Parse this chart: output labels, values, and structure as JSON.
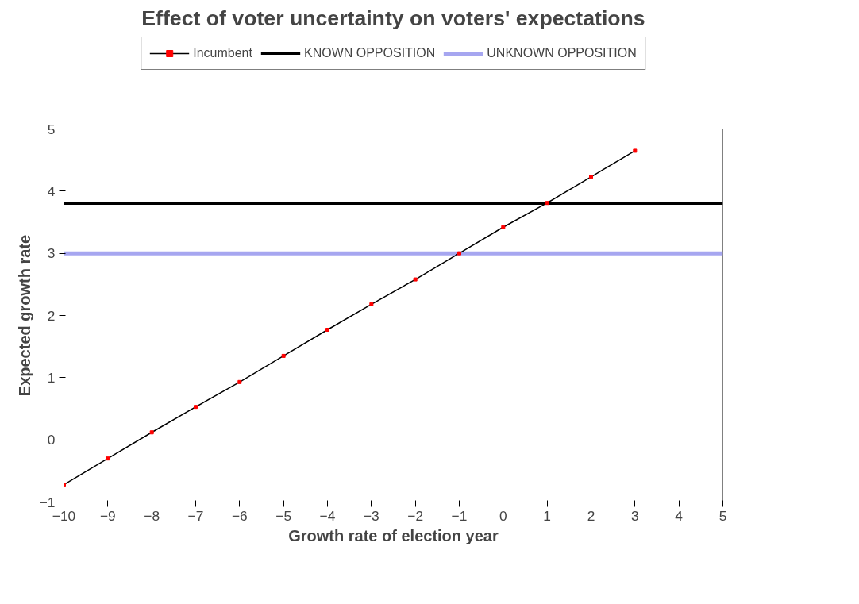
{
  "chart_data": {
    "type": "line",
    "title": "Effect of voter uncertainty on voters' expectations",
    "xlabel": "Growth rate of election year",
    "ylabel": "Expected growth rate",
    "xlim": [
      -10,
      5
    ],
    "ylim": [
      -1,
      5
    ],
    "xticks": [
      -10,
      -9,
      -8,
      -7,
      -6,
      -5,
      -4,
      -3,
      -2,
      -1,
      0,
      1,
      2,
      3,
      4,
      5
    ],
    "yticks": [
      -1,
      0,
      1,
      2,
      3,
      4,
      5
    ],
    "grid": false,
    "legend": "top",
    "series": [
      {
        "name": "Incumbent",
        "color": "#000000",
        "marker": "square",
        "x": [
          -10,
          -9,
          -8,
          -7,
          -6,
          -5,
          -4,
          -3,
          -2,
          -1,
          0,
          1,
          2,
          3
        ],
        "values": [
          -0.72,
          -0.3,
          0.12,
          0.53,
          0.93,
          1.35,
          1.77,
          2.18,
          2.58,
          3.0,
          3.42,
          3.81,
          4.23,
          4.65
        ]
      },
      {
        "name": "KNOWN OPPOSITION",
        "color": "#000000",
        "marker": "none",
        "x": [
          -10,
          5
        ],
        "values": [
          3.8,
          3.8
        ]
      },
      {
        "name": "UNKNOWN OPPOSITION",
        "color": "#a6a6f0",
        "marker": "none",
        "x": [
          -10,
          5
        ],
        "values": [
          3.0,
          3.0
        ]
      }
    ]
  }
}
